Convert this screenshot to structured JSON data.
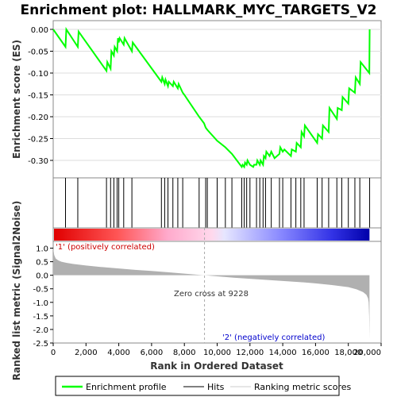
{
  "chart_data": [
    {
      "type": "line",
      "title": "Enrichment plot: HALLMARK_MYC_TARGETS_V2",
      "ylabel": "Enrichment score (ES)",
      "ylim": [
        -0.34,
        0.02
      ],
      "yticks": [
        "0.00",
        "-0.05",
        "-0.10",
        "-0.15",
        "-0.20",
        "-0.25",
        "-0.30"
      ],
      "grid": true,
      "series": [
        {
          "name": "Enrichment profile",
          "color": "#00ff00",
          "x": [
            0,
            750,
            800,
            1500,
            1550,
            3250,
            3300,
            3500,
            3550,
            3700,
            3750,
            3900,
            3950,
            4000,
            4050,
            4300,
            4350,
            4800,
            4850,
            6600,
            6650,
            6800,
            6850,
            7000,
            7050,
            7300,
            7350,
            7600,
            7650,
            7900,
            8000,
            8900,
            9200,
            9300,
            9400,
            10000,
            10500,
            10900,
            11000,
            11500,
            11550,
            11650,
            11700,
            11800,
            11850,
            12000,
            12200,
            12250,
            12400,
            12450,
            12600,
            12650,
            12800,
            12850,
            12950,
            13000,
            13200,
            13300,
            13500,
            13800,
            13850,
            14000,
            14100,
            14500,
            14550,
            14800,
            14850,
            15100,
            15150,
            15300,
            15350,
            16100,
            16150,
            16400,
            16450,
            16800,
            16850,
            17300,
            17350,
            17600,
            17650,
            18000,
            18050,
            18400,
            18450,
            18700,
            18750,
            19280,
            19300
          ],
          "values": [
            0.0,
            -0.04,
            0.0,
            -0.04,
            -0.005,
            -0.095,
            -0.075,
            -0.09,
            -0.05,
            -0.06,
            -0.04,
            -0.05,
            -0.02,
            -0.03,
            -0.02,
            -0.035,
            -0.02,
            -0.05,
            -0.03,
            -0.12,
            -0.11,
            -0.125,
            -0.115,
            -0.13,
            -0.12,
            -0.13,
            -0.12,
            -0.135,
            -0.125,
            -0.145,
            -0.15,
            -0.2,
            -0.215,
            -0.225,
            -0.23,
            -0.255,
            -0.27,
            -0.285,
            -0.29,
            -0.315,
            -0.31,
            -0.315,
            -0.305,
            -0.31,
            -0.3,
            -0.31,
            -0.315,
            -0.31,
            -0.31,
            -0.3,
            -0.31,
            -0.3,
            -0.31,
            -0.29,
            -0.295,
            -0.28,
            -0.29,
            -0.28,
            -0.295,
            -0.285,
            -0.27,
            -0.28,
            -0.275,
            -0.29,
            -0.275,
            -0.28,
            -0.26,
            -0.27,
            -0.235,
            -0.245,
            -0.22,
            -0.26,
            -0.24,
            -0.25,
            -0.22,
            -0.235,
            -0.18,
            -0.205,
            -0.18,
            -0.185,
            -0.155,
            -0.17,
            -0.135,
            -0.145,
            -0.11,
            -0.125,
            -0.075,
            -0.1,
            0.0
          ]
        }
      ]
    },
    {
      "type": "hits",
      "series": [
        {
          "name": "Hits",
          "color": "#000000",
          "x": [
            750,
            1500,
            3250,
            3500,
            3700,
            3900,
            4000,
            4300,
            4800,
            6600,
            6800,
            7000,
            7300,
            7600,
            7900,
            8900,
            9300,
            9400,
            10000,
            10500,
            10900,
            11500,
            11650,
            11800,
            12000,
            12400,
            12600,
            12800,
            12950,
            13300,
            13800,
            14000,
            14500,
            14800,
            15100,
            15300,
            16100,
            16400,
            16800,
            17300,
            17600,
            18000,
            18400,
            18700,
            19300
          ]
        }
      ]
    },
    {
      "type": "area",
      "xlabel": "Rank in Ordered Dataset",
      "ylabel": "Ranked list metric (Signal2Noise)",
      "xlim": [
        0,
        20000
      ],
      "ylim": [
        -2.5,
        1.25
      ],
      "xticks": [
        "0",
        "2,000",
        "4,000",
        "6,000",
        "8,000",
        "10,000",
        "12,000",
        "14,000",
        "16,000",
        "18,000",
        "20,000"
      ],
      "yticks": [
        "1.0",
        "0.5",
        "0.0",
        "-0.5",
        "-1.0",
        "-1.5",
        "-2.0",
        "-2.5"
      ],
      "series": [
        {
          "name": "Ranking metric scores",
          "color": "#b0b0b0",
          "x": [
            0,
            60,
            150,
            300,
            500,
            800,
            1200,
            2000,
            3000,
            4000,
            5000,
            6000,
            7000,
            8000,
            9228,
            10000,
            11000,
            12000,
            13000,
            14000,
            15000,
            16000,
            17000,
            18000,
            18500,
            18900,
            19100,
            19200,
            19240,
            19270,
            19290
          ],
          "values": [
            1.0,
            0.75,
            0.62,
            0.55,
            0.5,
            0.46,
            0.42,
            0.36,
            0.3,
            0.25,
            0.2,
            0.16,
            0.11,
            0.06,
            0.0,
            -0.04,
            -0.09,
            -0.13,
            -0.17,
            -0.21,
            -0.25,
            -0.3,
            -0.36,
            -0.44,
            -0.52,
            -0.62,
            -0.72,
            -0.85,
            -1.0,
            -1.5,
            -2.35
          ]
        }
      ],
      "annotations": [
        "'1' (positively correlated)",
        "Zero cross at 9228",
        "'2' (negatively correlated)"
      ],
      "zero_cross": 9228
    }
  ],
  "legend": {
    "items": [
      "Enrichment profile",
      "Hits",
      "Ranking metric scores"
    ]
  }
}
